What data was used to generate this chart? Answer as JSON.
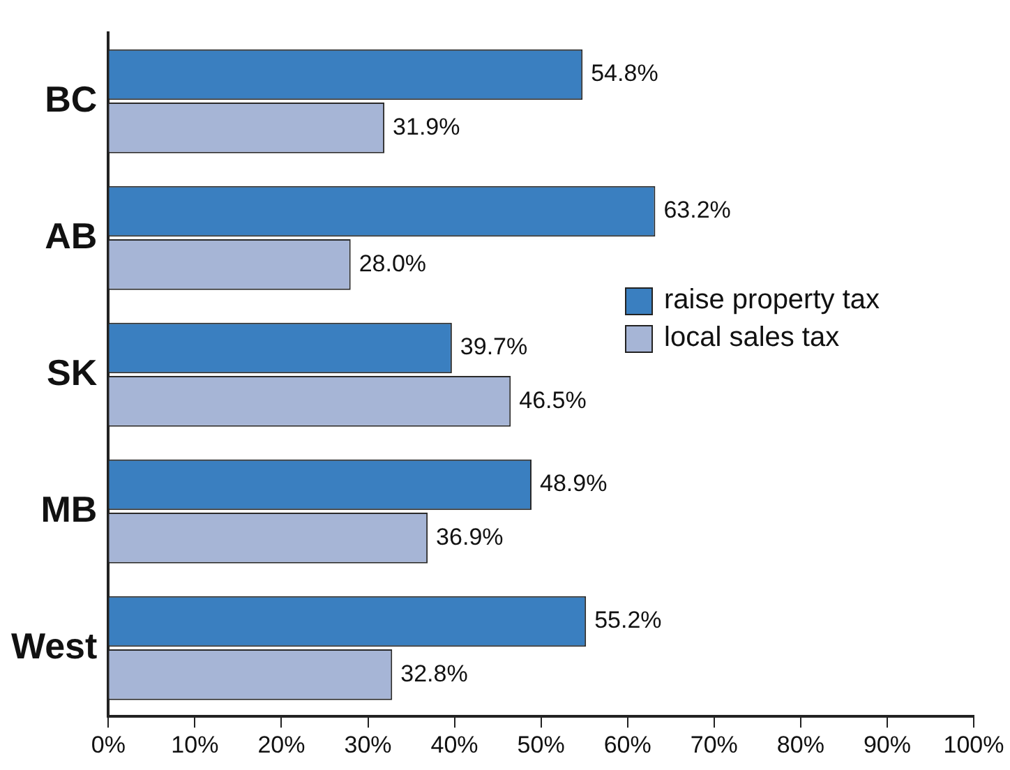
{
  "chart_data": {
    "type": "bar",
    "orientation": "horizontal",
    "categories": [
      "BC",
      "AB",
      "SK",
      "MB",
      "West"
    ],
    "series": [
      {
        "name": "raise property tax",
        "color": "#3a7fc0",
        "values": [
          54.8,
          63.2,
          39.7,
          48.9,
          55.2
        ],
        "value_labels": [
          "54.8%",
          "63.2%",
          "39.7%",
          "48.9%",
          "55.2%"
        ]
      },
      {
        "name": "local sales tax",
        "color": "#a6b5d6",
        "values": [
          31.9,
          28.0,
          46.5,
          36.9,
          32.8
        ],
        "value_labels": [
          "31.9%",
          "28.0%",
          "46.5%",
          "36.9%",
          "32.8%"
        ]
      }
    ],
    "xlim": [
      0,
      100
    ],
    "xticks": [
      {
        "value": 0,
        "label": "0%"
      },
      {
        "value": 10,
        "label": "10%"
      },
      {
        "value": 20,
        "label": "20%"
      },
      {
        "value": 30,
        "label": "30%"
      },
      {
        "value": 40,
        "label": "40%"
      },
      {
        "value": 50,
        "label": "50%"
      },
      {
        "value": 60,
        "label": "60%"
      },
      {
        "value": 70,
        "label": "70%"
      },
      {
        "value": 80,
        "label": "80%"
      },
      {
        "value": 90,
        "label": "90%"
      },
      {
        "value": 100,
        "label": "100%"
      }
    ],
    "grid": false,
    "legend": "right"
  }
}
